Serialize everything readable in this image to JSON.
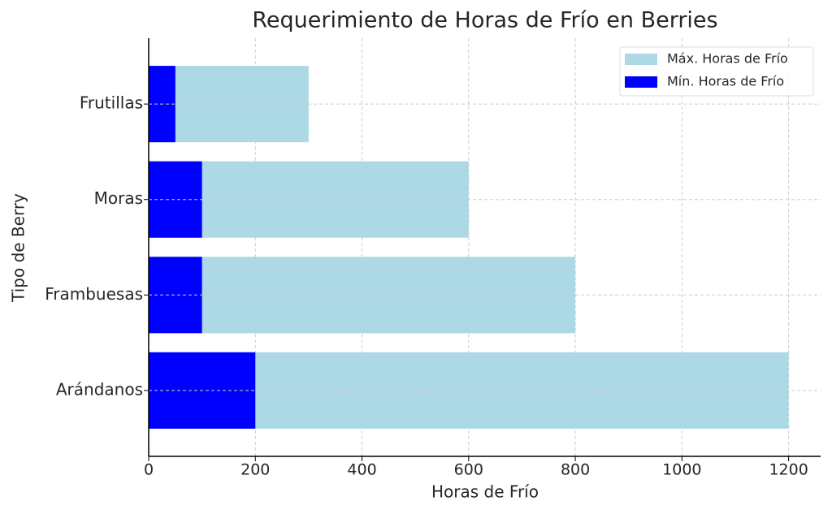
{
  "chart_data": {
    "type": "bar",
    "orientation": "horizontal",
    "overlap": true,
    "title": "Requerimiento de Horas de Frío en Berries",
    "x_label": "Horas de Frío",
    "y_label": "Tipo de Berry",
    "categories": [
      "Arándanos",
      "Frambuesas",
      "Moras",
      "Frutillas"
    ],
    "series": [
      {
        "name": "Máx. Horas de Frío",
        "color": "#add8e6",
        "values": [
          1200,
          800,
          600,
          300
        ]
      },
      {
        "name": "Mín. Horas de Frío",
        "color": "#0000ff",
        "values": [
          200,
          100,
          100,
          50
        ]
      }
    ],
    "xlim": [
      0,
      1260
    ],
    "xticks": [
      0,
      200,
      400,
      600,
      800,
      1000,
      1200
    ],
    "grid": true,
    "legend": "upper right"
  }
}
